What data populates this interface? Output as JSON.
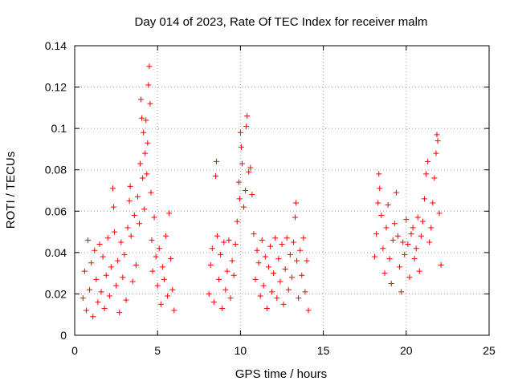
{
  "chart_data": {
    "type": "scatter",
    "title": "Day 014 of 2023, Rate Of TEC Index for receiver malm",
    "xlabel": "GPS time / hours",
    "ylabel": "ROTI / TECUs",
    "xlim": [
      0,
      25
    ],
    "ylim": [
      0,
      0.14
    ],
    "xticks": [
      0,
      5,
      10,
      15,
      20,
      25
    ],
    "xtick_labels": [
      "0",
      "5",
      "10",
      "15",
      "20",
      "25"
    ],
    "yticks": [
      0,
      0.02,
      0.04,
      0.06,
      0.08,
      0.1,
      0.12,
      0.14
    ],
    "ytick_labels": [
      "0",
      "0.02",
      "0.04",
      "0.06",
      "0.08",
      "0.1",
      "0.12",
      "0.14"
    ],
    "grid": true,
    "marker": "plus",
    "color": "#ff0000",
    "series": [
      {
        "points": [
          [
            0.5,
            0.018
          ],
          [
            0.6,
            0.031
          ],
          [
            0.7,
            0.012
          ],
          [
            0.8,
            0.046
          ],
          [
            0.9,
            0.022
          ],
          [
            1.0,
            0.035
          ],
          [
            1.1,
            0.009
          ],
          [
            1.2,
            0.041
          ],
          [
            1.3,
            0.027
          ],
          [
            1.4,
            0.016
          ],
          [
            1.5,
            0.044
          ],
          [
            1.6,
            0.021
          ],
          [
            1.7,
            0.038
          ],
          [
            1.8,
            0.013
          ],
          [
            1.9,
            0.029
          ],
          [
            2.0,
            0.047
          ],
          [
            2.1,
            0.019
          ],
          [
            2.2,
            0.033
          ],
          [
            2.3,
            0.071
          ],
          [
            2.35,
            0.062
          ],
          [
            2.4,
            0.05
          ],
          [
            2.5,
            0.024
          ],
          [
            2.6,
            0.036
          ],
          [
            2.7,
            0.011
          ],
          [
            2.8,
            0.045
          ],
          [
            2.9,
            0.028
          ],
          [
            3.0,
            0.039
          ],
          [
            3.1,
            0.017
          ],
          [
            3.2,
            0.052
          ],
          [
            3.3,
            0.065
          ],
          [
            3.35,
            0.072
          ],
          [
            3.4,
            0.048
          ],
          [
            3.5,
            0.026
          ],
          [
            3.6,
            0.058
          ],
          [
            3.7,
            0.034
          ],
          [
            3.8,
            0.067
          ],
          [
            3.9,
            0.054
          ],
          [
            3.95,
            0.083
          ],
          [
            4.0,
            0.114
          ],
          [
            4.05,
            0.105
          ],
          [
            4.1,
            0.076
          ],
          [
            4.15,
            0.098
          ],
          [
            4.2,
            0.061
          ],
          [
            4.25,
            0.088
          ],
          [
            4.3,
            0.104
          ],
          [
            4.35,
            0.078
          ],
          [
            4.4,
            0.093
          ],
          [
            4.45,
            0.121
          ],
          [
            4.5,
            0.13
          ],
          [
            4.55,
            0.112
          ],
          [
            4.6,
            0.069
          ],
          [
            4.65,
            0.046
          ],
          [
            4.7,
            0.031
          ],
          [
            4.8,
            0.057
          ],
          [
            4.9,
            0.038
          ],
          [
            5.0,
            0.024
          ],
          [
            5.1,
            0.042
          ],
          [
            5.2,
            0.015
          ],
          [
            5.3,
            0.033
          ],
          [
            5.4,
            0.027
          ],
          [
            5.5,
            0.048
          ],
          [
            5.6,
            0.019
          ],
          [
            5.7,
            0.059
          ],
          [
            5.8,
            0.037
          ],
          [
            5.9,
            0.022
          ],
          [
            6.0,
            0.012
          ],
          [
            8.1,
            0.02
          ],
          [
            8.2,
            0.034
          ],
          [
            8.3,
            0.042
          ],
          [
            8.4,
            0.016
          ],
          [
            8.5,
            0.077
          ],
          [
            8.55,
            0.084
          ],
          [
            8.6,
            0.048
          ],
          [
            8.7,
            0.027
          ],
          [
            8.8,
            0.039
          ],
          [
            8.9,
            0.013
          ],
          [
            9.0,
            0.045
          ],
          [
            9.1,
            0.022
          ],
          [
            9.2,
            0.031
          ],
          [
            9.3,
            0.046
          ],
          [
            9.4,
            0.018
          ],
          [
            9.5,
            0.036
          ],
          [
            9.6,
            0.029
          ],
          [
            9.7,
            0.044
          ],
          [
            9.8,
            0.055
          ],
          [
            9.9,
            0.074
          ],
          [
            9.95,
            0.066
          ],
          [
            10.0,
            0.098
          ],
          [
            10.05,
            0.091
          ],
          [
            10.1,
            0.083
          ],
          [
            10.2,
            0.062
          ],
          [
            10.3,
            0.07
          ],
          [
            10.35,
            0.101
          ],
          [
            10.4,
            0.106
          ],
          [
            10.5,
            0.079
          ],
          [
            10.6,
            0.081
          ],
          [
            10.7,
            0.068
          ],
          [
            10.8,
            0.049
          ],
          [
            10.9,
            0.027
          ],
          [
            11.0,
            0.041
          ],
          [
            11.1,
            0.035
          ],
          [
            11.2,
            0.019
          ],
          [
            11.3,
            0.046
          ],
          [
            11.4,
            0.024
          ],
          [
            11.5,
            0.038
          ],
          [
            11.6,
            0.013
          ],
          [
            11.7,
            0.033
          ],
          [
            11.8,
            0.043
          ],
          [
            11.9,
            0.021
          ],
          [
            12.0,
            0.03
          ],
          [
            12.1,
            0.047
          ],
          [
            12.2,
            0.018
          ],
          [
            12.3,
            0.037
          ],
          [
            12.4,
            0.026
          ],
          [
            12.5,
            0.044
          ],
          [
            12.6,
            0.015
          ],
          [
            12.7,
            0.032
          ],
          [
            12.8,
            0.047
          ],
          [
            12.9,
            0.022
          ],
          [
            13.0,
            0.039
          ],
          [
            13.1,
            0.028
          ],
          [
            13.2,
            0.045
          ],
          [
            13.3,
            0.057
          ],
          [
            13.35,
            0.064
          ],
          [
            13.4,
            0.036
          ],
          [
            13.5,
            0.018
          ],
          [
            13.6,
            0.041
          ],
          [
            13.7,
            0.029
          ],
          [
            13.8,
            0.047
          ],
          [
            13.9,
            0.021
          ],
          [
            14.0,
            0.036
          ],
          [
            14.1,
            0.012
          ],
          [
            18.1,
            0.038
          ],
          [
            18.2,
            0.049
          ],
          [
            18.3,
            0.064
          ],
          [
            18.35,
            0.078
          ],
          [
            18.4,
            0.071
          ],
          [
            18.5,
            0.058
          ],
          [
            18.6,
            0.042
          ],
          [
            18.7,
            0.03
          ],
          [
            18.8,
            0.052
          ],
          [
            18.9,
            0.063
          ],
          [
            19.0,
            0.037
          ],
          [
            19.1,
            0.025
          ],
          [
            19.2,
            0.046
          ],
          [
            19.3,
            0.054
          ],
          [
            19.4,
            0.069
          ],
          [
            19.5,
            0.048
          ],
          [
            19.6,
            0.033
          ],
          [
            19.7,
            0.021
          ],
          [
            19.8,
            0.045
          ],
          [
            19.9,
            0.039
          ],
          [
            20.0,
            0.056
          ],
          [
            20.1,
            0.044
          ],
          [
            20.2,
            0.028
          ],
          [
            20.3,
            0.049
          ],
          [
            20.4,
            0.052
          ],
          [
            20.5,
            0.037
          ],
          [
            20.6,
            0.042
          ],
          [
            20.7,
            0.057
          ],
          [
            20.8,
            0.031
          ],
          [
            20.9,
            0.048
          ],
          [
            21.0,
            0.055
          ],
          [
            21.1,
            0.066
          ],
          [
            21.2,
            0.078
          ],
          [
            21.3,
            0.084
          ],
          [
            21.4,
            0.045
          ],
          [
            21.5,
            0.052
          ],
          [
            21.6,
            0.064
          ],
          [
            21.7,
            0.076
          ],
          [
            21.8,
            0.088
          ],
          [
            21.85,
            0.097
          ],
          [
            21.9,
            0.094
          ],
          [
            22.0,
            0.059
          ],
          [
            22.1,
            0.034
          ]
        ]
      }
    ]
  }
}
